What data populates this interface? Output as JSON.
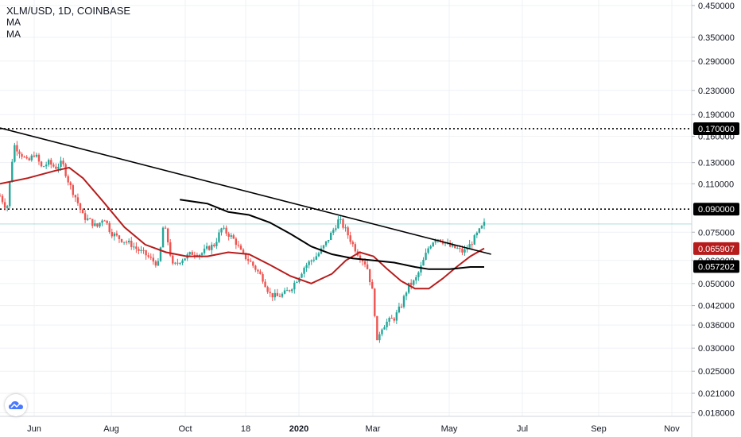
{
  "header": {
    "symbol_line": "XLM/USD, 1D, COINBASE",
    "indicators": [
      "MA",
      "MA"
    ]
  },
  "colors": {
    "up": "#26a69a",
    "down": "#ef5350",
    "ma_fast": "#b71c1c",
    "ma_slow": "#000000",
    "grid": "#eef1f5",
    "axis_text": "#131722",
    "price_line": "#26a69a"
  },
  "icons": {
    "logo": "tradingview-cloud-icon"
  },
  "chart_data": {
    "type": "candlestick",
    "title": "XLM/USD, 1D, COINBASE",
    "xlabel": "",
    "ylabel": "",
    "y_scale": "log",
    "ylim": [
      0.0175,
      0.47
    ],
    "grid": true,
    "time_axis_labels": [
      "Jun",
      "Aug",
      "Oct",
      "18",
      "2020",
      "Mar",
      "May",
      "Jul",
      "Sep",
      "Nov"
    ],
    "price_axis_labels": [
      "0.450000",
      "0.350000",
      "0.290000",
      "0.230000",
      "0.190000",
      "0.160000",
      "0.130000",
      "0.110000",
      "0.075000",
      "0.060000",
      "0.050000",
      "0.042000",
      "0.036000",
      "0.030000",
      "0.025000",
      "0.021000",
      "0.018000"
    ],
    "price_badges": [
      {
        "value": "0.170000",
        "style": "dark"
      },
      {
        "value": "0.090000",
        "style": "dark"
      },
      {
        "value": "0.065907",
        "style": "red"
      },
      {
        "value": "0.057202",
        "style": "dark"
      }
    ],
    "horizontal_levels": [
      0.17,
      0.09
    ],
    "trendline": [
      [
        0.0,
        0.171
      ],
      [
        0.71,
        0.063
      ]
    ],
    "price_path": [
      [
        0.0,
        0.1
      ],
      [
        0.01,
        0.09
      ],
      [
        0.02,
        0.15
      ],
      [
        0.03,
        0.14
      ],
      [
        0.04,
        0.13
      ],
      [
        0.05,
        0.14
      ],
      [
        0.06,
        0.125
      ],
      [
        0.07,
        0.13
      ],
      [
        0.08,
        0.125
      ],
      [
        0.09,
        0.13
      ],
      [
        0.1,
        0.11
      ],
      [
        0.11,
        0.098
      ],
      [
        0.12,
        0.085
      ],
      [
        0.13,
        0.082
      ],
      [
        0.14,
        0.078
      ],
      [
        0.15,
        0.085
      ],
      [
        0.16,
        0.075
      ],
      [
        0.17,
        0.072
      ],
      [
        0.18,
        0.07
      ],
      [
        0.19,
        0.068
      ],
      [
        0.2,
        0.065
      ],
      [
        0.21,
        0.063
      ],
      [
        0.22,
        0.06
      ],
      [
        0.23,
        0.058
      ],
      [
        0.235,
        0.078
      ],
      [
        0.24,
        0.075
      ],
      [
        0.25,
        0.057
      ],
      [
        0.26,
        0.06
      ],
      [
        0.27,
        0.062
      ],
      [
        0.28,
        0.064
      ],
      [
        0.29,
        0.063
      ],
      [
        0.3,
        0.066
      ],
      [
        0.31,
        0.068
      ],
      [
        0.32,
        0.077
      ],
      [
        0.33,
        0.074
      ],
      [
        0.34,
        0.07
      ],
      [
        0.35,
        0.063
      ],
      [
        0.36,
        0.06
      ],
      [
        0.37,
        0.056
      ],
      [
        0.38,
        0.052
      ],
      [
        0.39,
        0.046
      ],
      [
        0.4,
        0.045
      ],
      [
        0.41,
        0.046
      ],
      [
        0.42,
        0.048
      ],
      [
        0.43,
        0.052
      ],
      [
        0.44,
        0.057
      ],
      [
        0.45,
        0.06
      ],
      [
        0.46,
        0.063
      ],
      [
        0.47,
        0.068
      ],
      [
        0.48,
        0.075
      ],
      [
        0.49,
        0.083
      ],
      [
        0.5,
        0.076
      ],
      [
        0.51,
        0.068
      ],
      [
        0.52,
        0.062
      ],
      [
        0.53,
        0.058
      ],
      [
        0.54,
        0.045
      ],
      [
        0.545,
        0.031
      ],
      [
        0.55,
        0.035
      ],
      [
        0.56,
        0.037
      ],
      [
        0.57,
        0.038
      ],
      [
        0.58,
        0.042
      ],
      [
        0.59,
        0.049
      ],
      [
        0.6,
        0.051
      ],
      [
        0.61,
        0.058
      ],
      [
        0.62,
        0.067
      ],
      [
        0.63,
        0.072
      ],
      [
        0.64,
        0.07
      ],
      [
        0.65,
        0.067
      ],
      [
        0.66,
        0.066
      ],
      [
        0.67,
        0.064
      ],
      [
        0.68,
        0.068
      ],
      [
        0.69,
        0.074
      ],
      [
        0.7,
        0.08
      ]
    ],
    "series": [
      {
        "name": "MA",
        "values": [
          [
            0.0,
            0.11
          ],
          [
            0.04,
            0.115
          ],
          [
            0.08,
            0.122
          ],
          [
            0.1,
            0.125
          ],
          [
            0.12,
            0.115
          ],
          [
            0.15,
            0.095
          ],
          [
            0.18,
            0.078
          ],
          [
            0.21,
            0.068
          ],
          [
            0.24,
            0.064
          ],
          [
            0.27,
            0.062
          ],
          [
            0.3,
            0.062
          ],
          [
            0.33,
            0.064
          ],
          [
            0.36,
            0.063
          ],
          [
            0.39,
            0.058
          ],
          [
            0.42,
            0.053
          ],
          [
            0.45,
            0.05
          ],
          [
            0.48,
            0.054
          ],
          [
            0.5,
            0.06
          ],
          [
            0.52,
            0.064
          ],
          [
            0.54,
            0.062
          ],
          [
            0.56,
            0.056
          ],
          [
            0.58,
            0.051
          ],
          [
            0.6,
            0.048
          ],
          [
            0.62,
            0.048
          ],
          [
            0.64,
            0.052
          ],
          [
            0.66,
            0.057
          ],
          [
            0.68,
            0.062
          ],
          [
            0.7,
            0.066
          ]
        ]
      },
      {
        "name": "MA",
        "values": [
          [
            0.26,
            0.097
          ],
          [
            0.3,
            0.094
          ],
          [
            0.33,
            0.088
          ],
          [
            0.36,
            0.086
          ],
          [
            0.39,
            0.081
          ],
          [
            0.42,
            0.074
          ],
          [
            0.45,
            0.067
          ],
          [
            0.48,
            0.063
          ],
          [
            0.51,
            0.061
          ],
          [
            0.54,
            0.06
          ],
          [
            0.57,
            0.059
          ],
          [
            0.6,
            0.057
          ],
          [
            0.62,
            0.056
          ],
          [
            0.65,
            0.056
          ],
          [
            0.68,
            0.057
          ],
          [
            0.7,
            0.057
          ]
        ]
      }
    ]
  }
}
